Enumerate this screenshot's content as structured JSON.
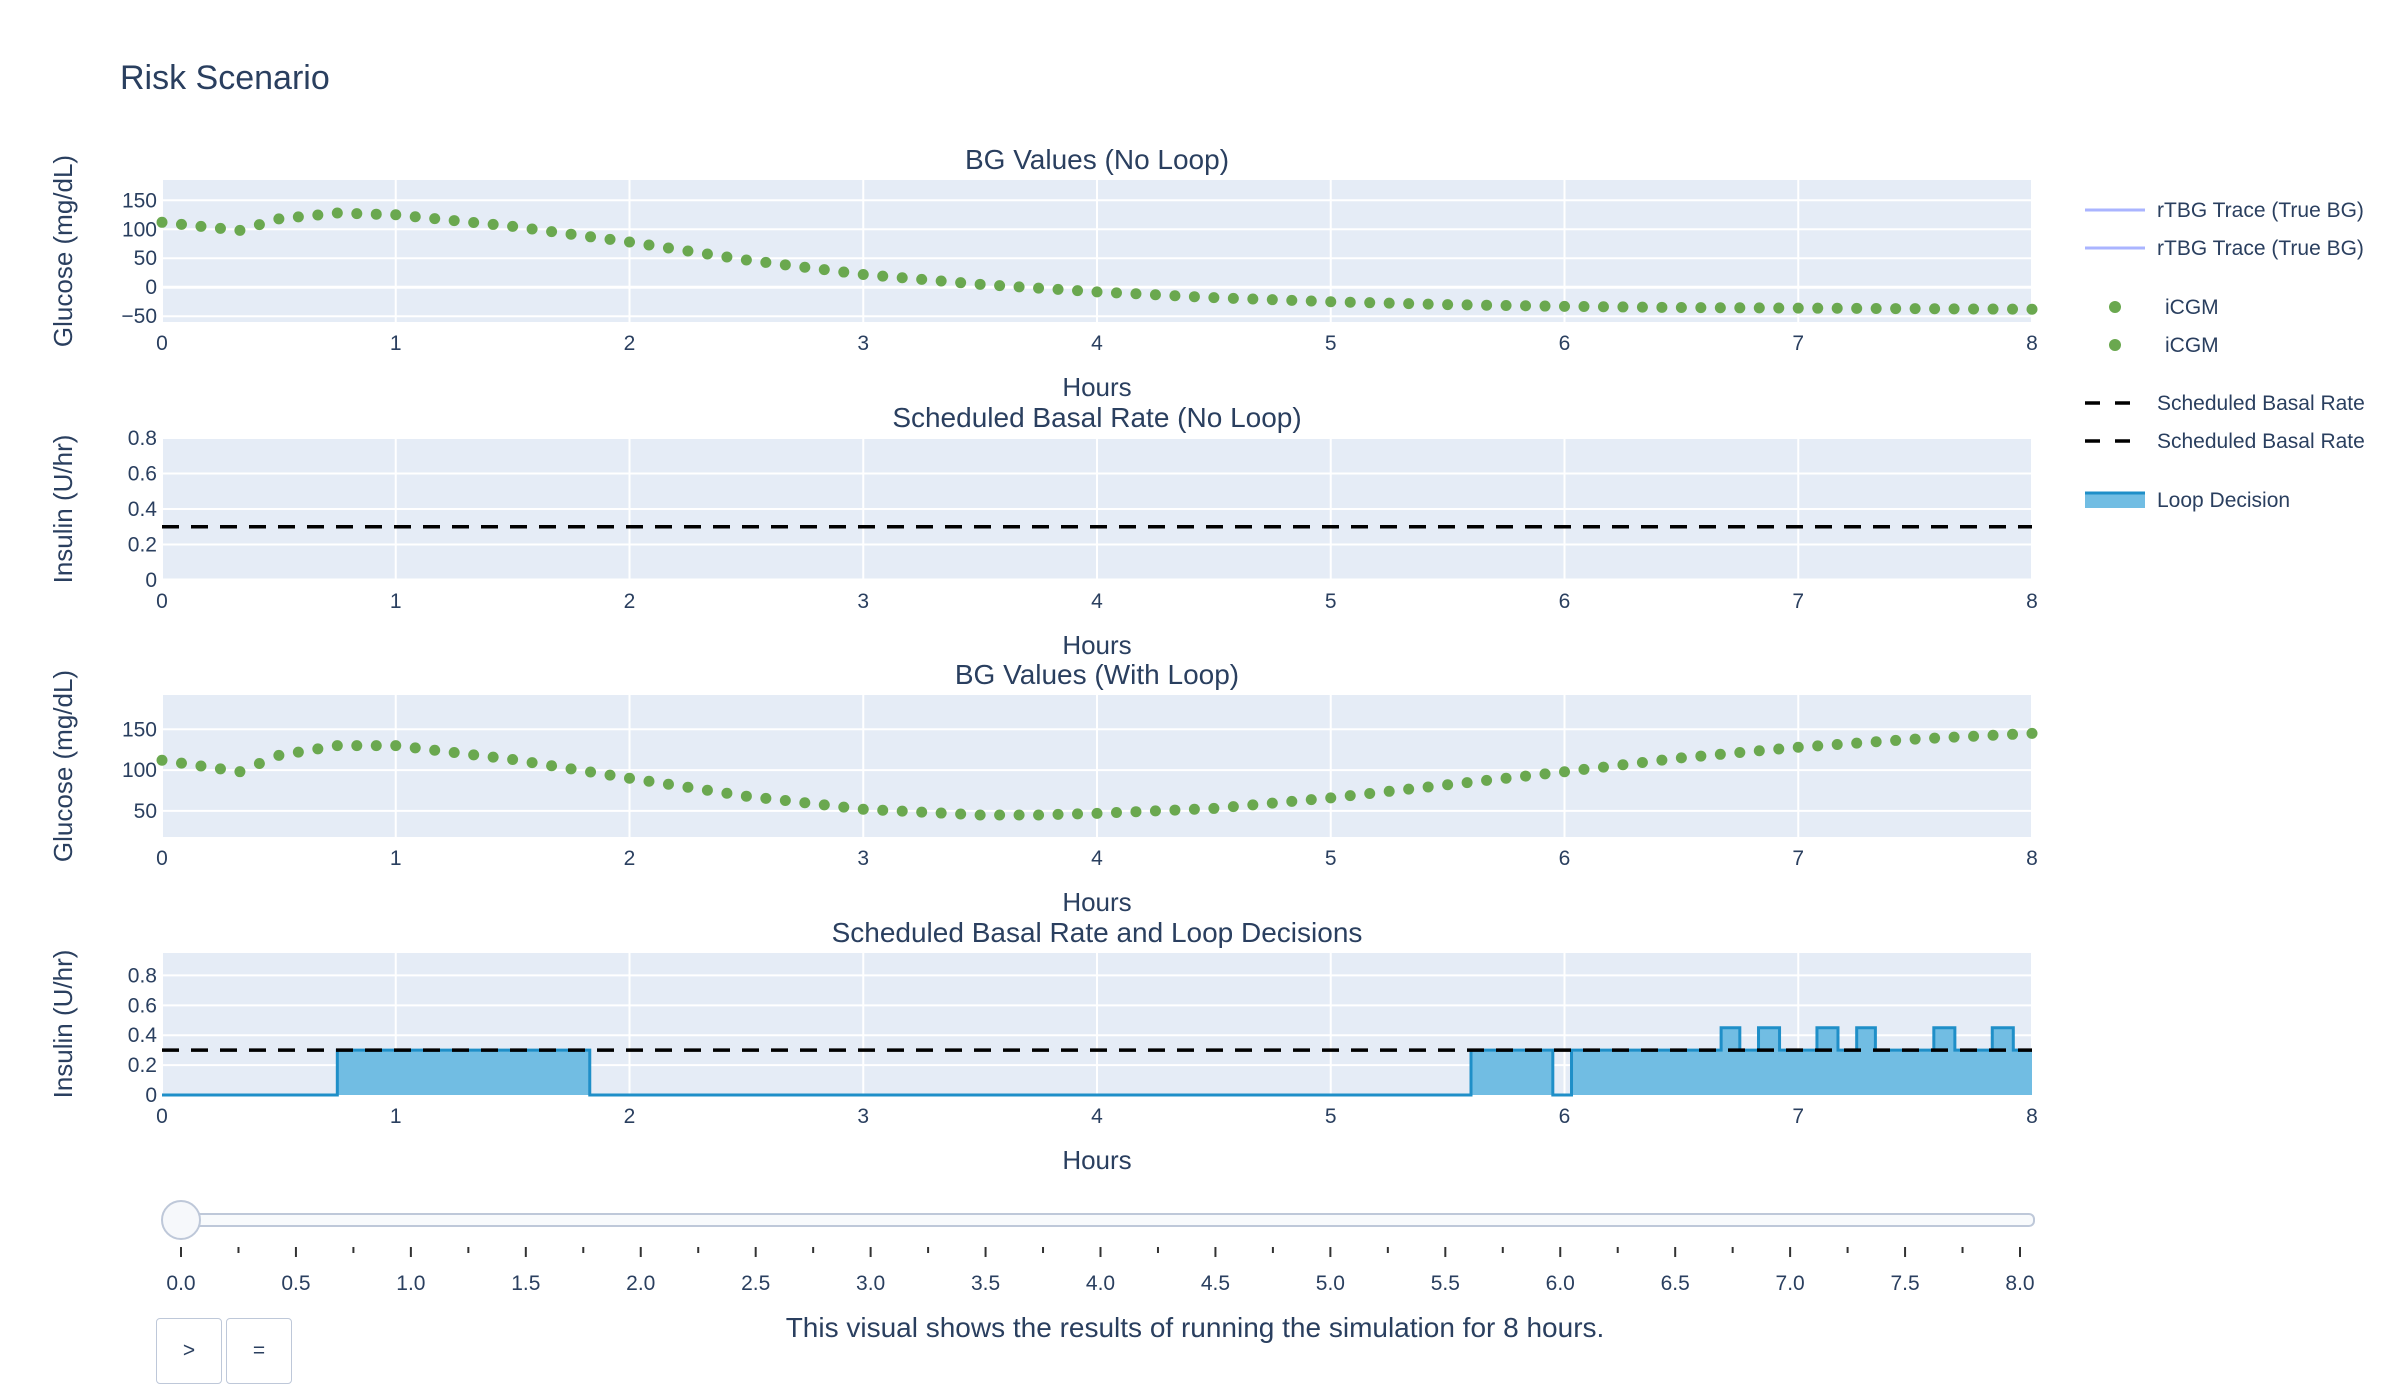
{
  "page_title": "Risk Scenario",
  "caption": "This visual shows the results of running the simulation for 8 hours.",
  "controls": {
    "play_label": ">",
    "pause_label": "="
  },
  "legend": [
    {
      "label": "rTBG Trace (True BG)",
      "kind": "line",
      "color": "#aab4ff"
    },
    {
      "label": "rTBG Trace (True BG)",
      "kind": "line",
      "color": "#aab4ff"
    },
    {
      "label": "iCGM",
      "kind": "marker",
      "color": "#6aa84f"
    },
    {
      "label": "iCGM",
      "kind": "marker",
      "color": "#6aa84f"
    },
    {
      "label": "Scheduled Basal Rate",
      "kind": "dash",
      "color": "#000000"
    },
    {
      "label": "Scheduled Basal Rate",
      "kind": "dash",
      "color": "#000000"
    },
    {
      "label": "Loop Decision",
      "kind": "fill",
      "color": "#1f8fc8",
      "fill": "#71bde3"
    }
  ],
  "slider": {
    "value": 0.0,
    "min": 0,
    "max": 8,
    "labels": [
      "0.0",
      "0.5",
      "1.0",
      "1.5",
      "2.0",
      "2.5",
      "3.0",
      "3.5",
      "4.0",
      "4.5",
      "5.0",
      "5.5",
      "6.0",
      "6.5",
      "7.0",
      "7.5",
      "8.0"
    ]
  },
  "colors": {
    "plot_bg": "#e5ecf6",
    "grid": "#ffffff",
    "icgm": "#6aa84f",
    "basal": "#000000",
    "loop_line": "#1f8fc8",
    "loop_fill": "#71bde3"
  },
  "chart_data": [
    {
      "type": "scatter",
      "title": "BG Values (No Loop)",
      "xlabel": "Hours",
      "ylabel": "Glucose (mg/dL)",
      "xlim": [
        0,
        8
      ],
      "ylim": [
        -60,
        185
      ],
      "xticks": [
        0,
        1,
        2,
        3,
        4,
        5,
        6,
        7,
        8
      ],
      "yticks": [
        -50,
        0,
        50,
        100,
        150
      ],
      "series": [
        {
          "name": "iCGM",
          "points": [
            [
              0,
              112
            ],
            [
              0.333,
              98
            ],
            [
              0.5,
              118
            ],
            [
              0.75,
              128
            ],
            [
              1,
              125
            ],
            [
              1.5,
              105
            ],
            [
              2,
              78
            ],
            [
              2.5,
              47
            ],
            [
              3,
              22
            ],
            [
              3.5,
              5
            ],
            [
              4,
              -8
            ],
            [
              4.5,
              -18
            ],
            [
              5,
              -25
            ],
            [
              5.5,
              -30
            ],
            [
              6,
              -33
            ],
            [
              6.5,
              -35
            ],
            [
              7,
              -36
            ],
            [
              7.5,
              -37
            ],
            [
              8,
              -38
            ]
          ]
        }
      ]
    },
    {
      "type": "line",
      "title": "Scheduled Basal Rate (No Loop)",
      "xlabel": "Hours",
      "ylabel": "Insulin (U/hr)",
      "xlim": [
        0,
        8
      ],
      "ylim": [
        0,
        0.8
      ],
      "xticks": [
        0,
        1,
        2,
        3,
        4,
        5,
        6,
        7,
        8
      ],
      "yticks": [
        0,
        0.2,
        0.4,
        0.6,
        0.8
      ],
      "series": [
        {
          "name": "Scheduled Basal Rate",
          "value": 0.3
        }
      ]
    },
    {
      "type": "scatter",
      "title": "BG Values (With Loop)",
      "xlabel": "Hours",
      "ylabel": "Glucose (mg/dL)",
      "xlim": [
        0,
        8
      ],
      "ylim": [
        18,
        192
      ],
      "xticks": [
        0,
        1,
        2,
        3,
        4,
        5,
        6,
        7,
        8
      ],
      "yticks": [
        50,
        100,
        150
      ],
      "series": [
        {
          "name": "iCGM",
          "points": [
            [
              0,
              112
            ],
            [
              0.333,
              98
            ],
            [
              0.5,
              118
            ],
            [
              0.75,
              130
            ],
            [
              1,
              130
            ],
            [
              1.5,
              113
            ],
            [
              2,
              90
            ],
            [
              2.5,
              68
            ],
            [
              3,
              52
            ],
            [
              3.5,
              45
            ],
            [
              3.75,
              45
            ],
            [
              4,
              47
            ],
            [
              4.5,
              53
            ],
            [
              5,
              66
            ],
            [
              5.5,
              82
            ],
            [
              6,
              98
            ],
            [
              6.5,
              115
            ],
            [
              7,
              128
            ],
            [
              7.5,
              138
            ],
            [
              8,
              145
            ]
          ]
        }
      ]
    },
    {
      "type": "area",
      "title": "Scheduled Basal Rate and Loop Decisions",
      "xlabel": "Hours",
      "ylabel": "Insulin (U/hr)",
      "xlim": [
        0,
        8
      ],
      "ylim": [
        0,
        0.95
      ],
      "xticks": [
        0,
        1,
        2,
        3,
        4,
        5,
        6,
        7,
        8
      ],
      "yticks": [
        0,
        0.2,
        0.4,
        0.6,
        0.8
      ],
      "series": [
        {
          "name": "Scheduled Basal Rate",
          "value": 0.3
        },
        {
          "name": "Loop Decision",
          "steps": [
            [
              0,
              0
            ],
            [
              0.75,
              0.3
            ],
            [
              1.83,
              0
            ],
            [
              5.6,
              0.3
            ],
            [
              5.95,
              0
            ],
            [
              6.03,
              0.3
            ],
            [
              6.67,
              0.45
            ],
            [
              6.75,
              0.3
            ],
            [
              6.83,
              0.45
            ],
            [
              6.92,
              0.3
            ],
            [
              7.08,
              0.45
            ],
            [
              7.17,
              0.3
            ],
            [
              7.25,
              0.45
            ],
            [
              7.33,
              0.3
            ],
            [
              7.58,
              0.45
            ],
            [
              7.67,
              0.3
            ],
            [
              7.83,
              0.45
            ],
            [
              7.92,
              0.3
            ],
            [
              8,
              0.3
            ]
          ]
        }
      ]
    }
  ]
}
